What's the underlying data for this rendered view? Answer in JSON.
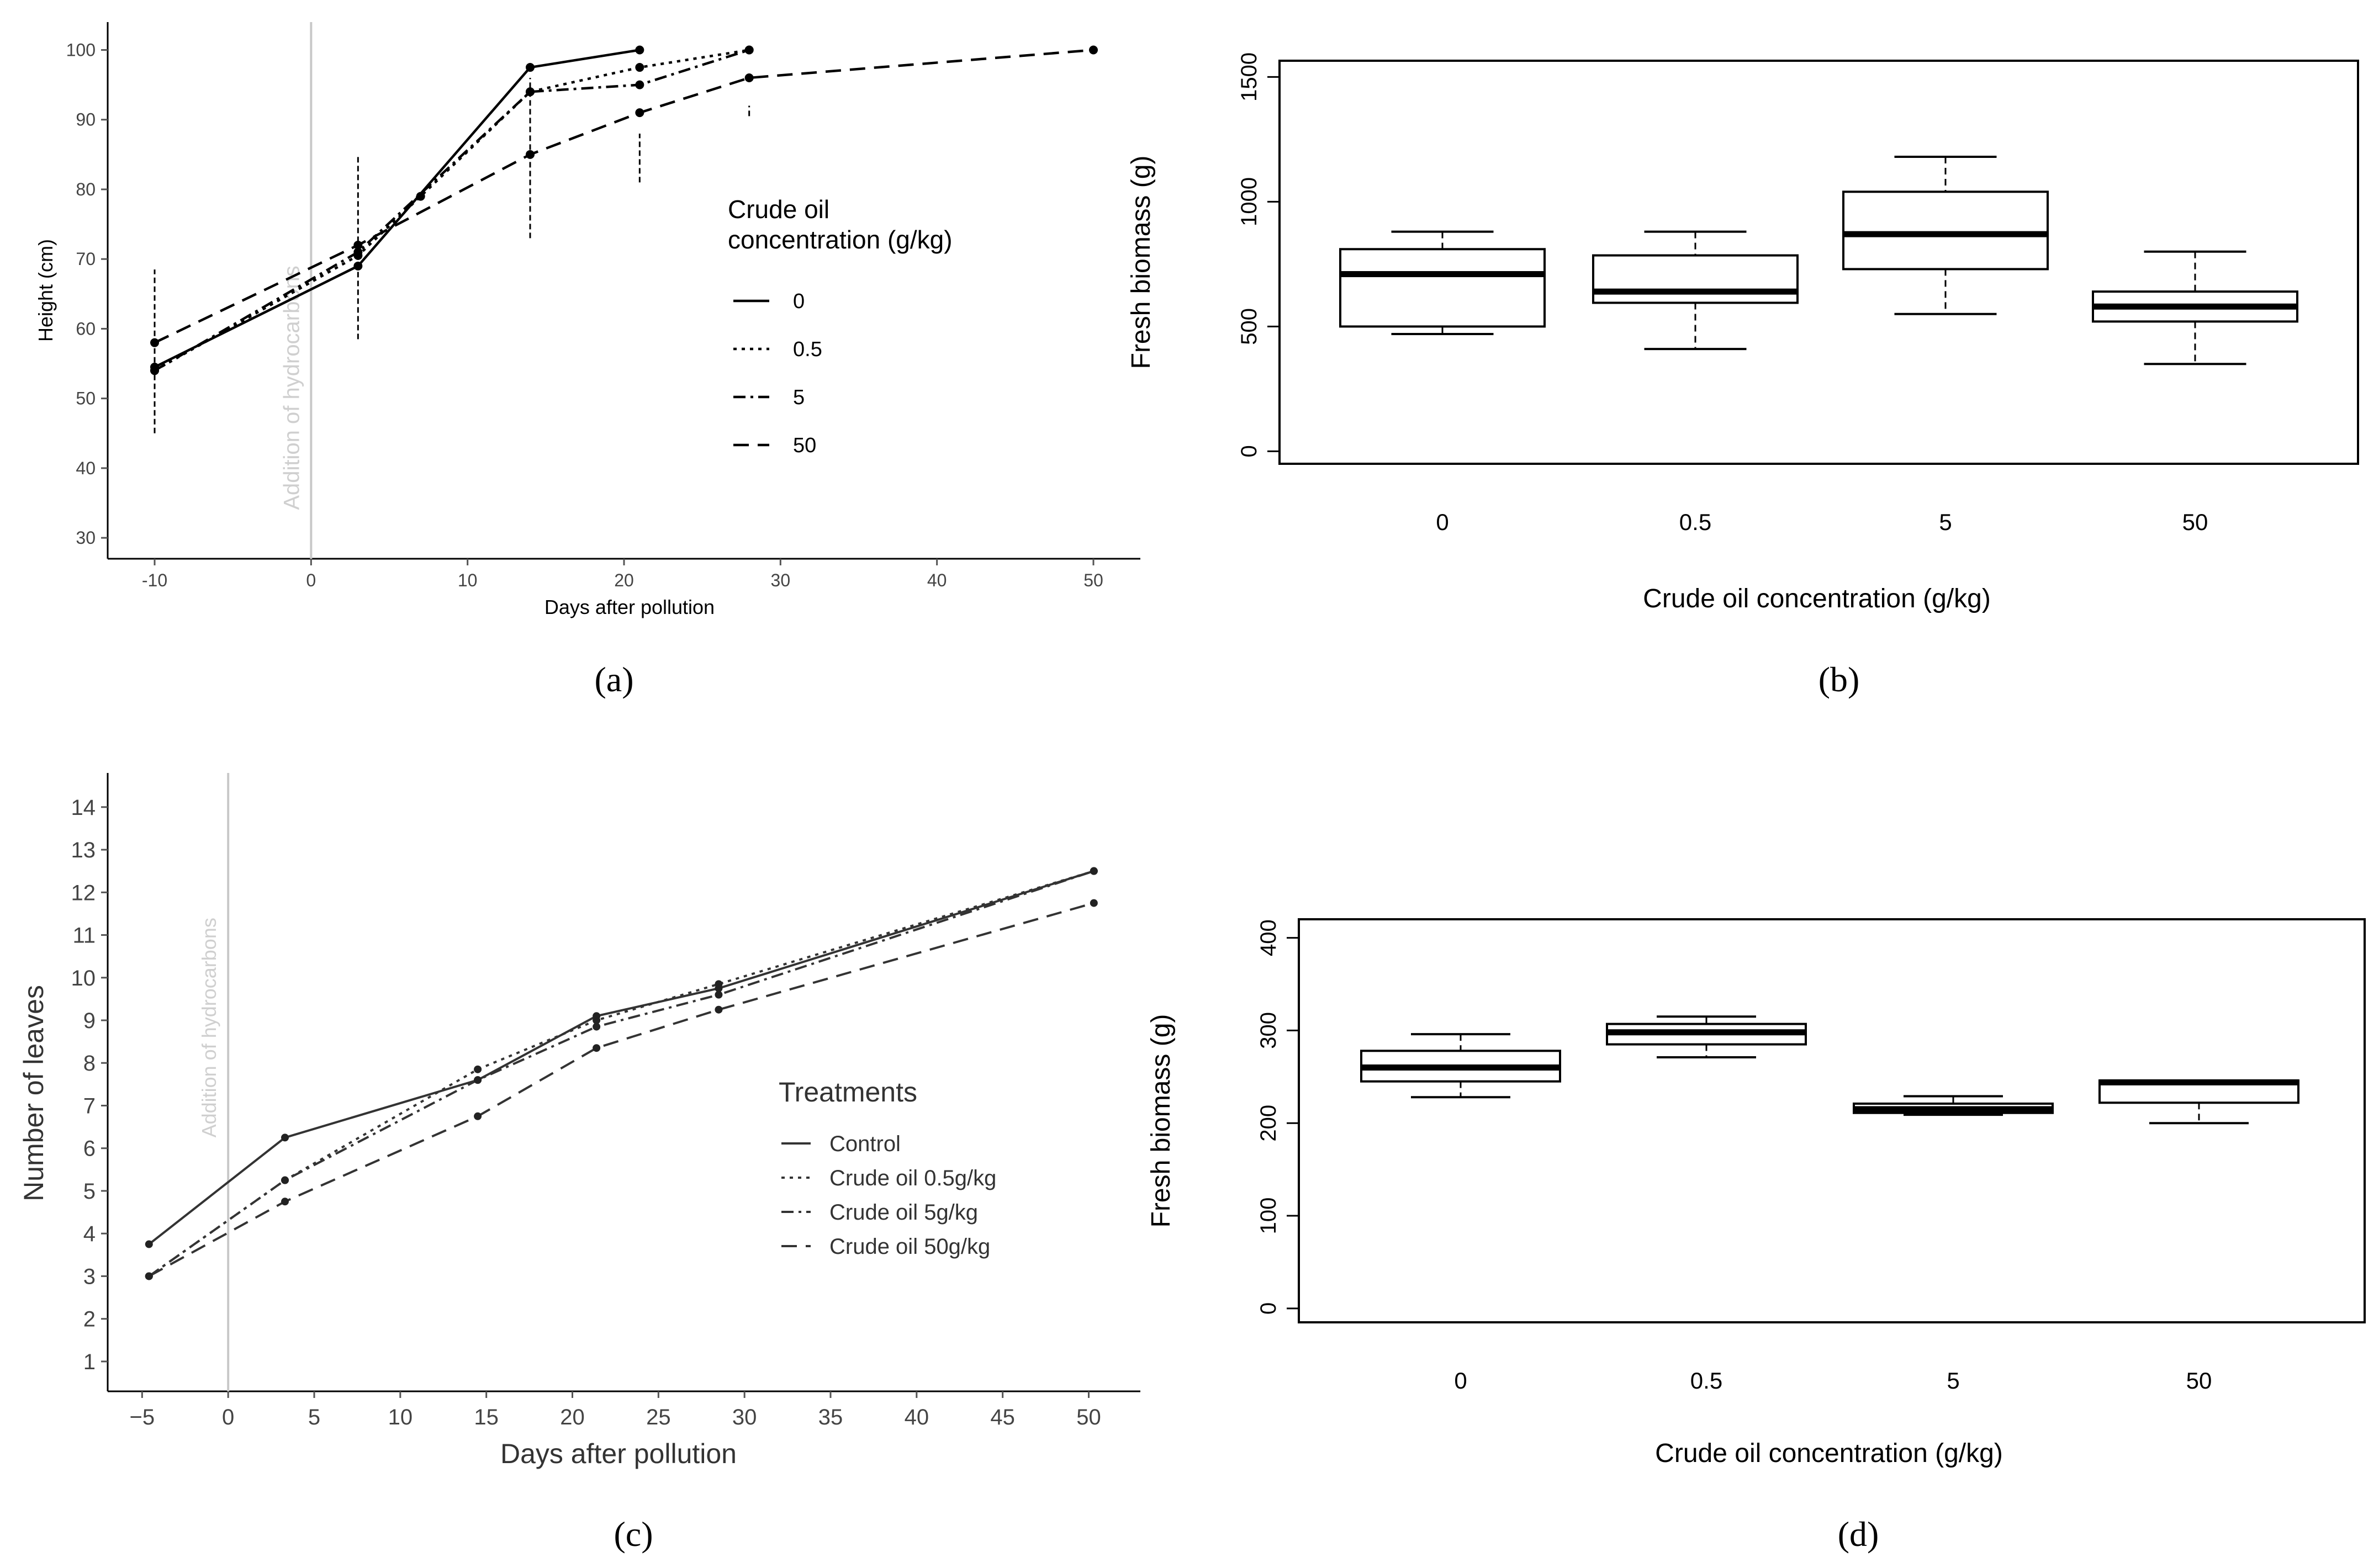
{
  "captions": {
    "a": "(a)",
    "b": "(b)",
    "c": "(c)",
    "d": "(d)"
  },
  "chart_data": [
    {
      "panel": "a",
      "type": "line",
      "xlabel": "Days after pollution",
      "ylabel": "Height (cm)",
      "xlim": [
        -13,
        53
      ],
      "ylim": [
        27,
        104
      ],
      "xticks": [
        -10,
        0,
        10,
        20,
        30,
        40,
        50
      ],
      "yticks": [
        30,
        40,
        50,
        60,
        70,
        80,
        90,
        100
      ],
      "annotation": "Addition of hydrocarbons",
      "annotation_x": 0,
      "legend_title": [
        "Crude oil",
        "concentration (g/kg)"
      ],
      "legend_position": "right",
      "series": [
        {
          "name": "0",
          "dash": "solid",
          "x": [
            -10,
            3,
            14,
            21
          ],
          "y": [
            54.5,
            69,
            97.5,
            100
          ]
        },
        {
          "name": "0.5",
          "dash": "dot",
          "x": [
            -10,
            3,
            7,
            14,
            21,
            28
          ],
          "y": [
            54,
            70.5,
            79,
            94,
            97.5,
            100
          ]
        },
        {
          "name": "5",
          "dash": "dashdot",
          "x": [
            -10,
            3,
            14,
            21,
            28
          ],
          "y": [
            54,
            71,
            94,
            95,
            100
          ]
        },
        {
          "name": "50",
          "dash": "dash",
          "x": [
            -10,
            3,
            14,
            21,
            28,
            50
          ],
          "y": [
            58,
            72,
            85,
            91,
            96,
            100
          ]
        }
      ],
      "errorbars": [
        {
          "x": -10,
          "low": 45,
          "high": 68.5
        },
        {
          "x": 3,
          "low": 58.5,
          "high": 85
        },
        {
          "x": 14,
          "low": 73,
          "high": 96
        },
        {
          "x": 21,
          "low": 81,
          "high": 88
        },
        {
          "x": 28,
          "low": 90.5,
          "high": 92
        }
      ]
    },
    {
      "panel": "b",
      "type": "box",
      "xlabel": "Crude oil concentration (g/kg)",
      "ylabel": "Fresh biomass (g)",
      "categories": [
        "0",
        "0.5",
        "5",
        "50"
      ],
      "ylim": [
        -50,
        1565
      ],
      "yticks": [
        0,
        500,
        1000,
        1500
      ],
      "boxes": [
        {
          "min": 470,
          "q1": 500,
          "median": 710,
          "q3": 810,
          "max": 880
        },
        {
          "min": 410,
          "q1": 595,
          "median": 640,
          "q3": 785,
          "max": 880
        },
        {
          "min": 550,
          "q1": 730,
          "median": 870,
          "q3": 1040,
          "max": 1180
        },
        {
          "min": 350,
          "q1": 520,
          "median": 580,
          "q3": 640,
          "max": 800
        }
      ]
    },
    {
      "panel": "c",
      "type": "line",
      "xlabel": "Days after pollution",
      "ylabel": "Number of leaves",
      "xlim": [
        -7,
        53
      ],
      "ylim": [
        0.3,
        14.8
      ],
      "xticks": [
        -5,
        0,
        5,
        10,
        15,
        20,
        25,
        30,
        35,
        40,
        45,
        50
      ],
      "yticks": [
        1,
        2,
        3,
        4,
        5,
        6,
        7,
        8,
        9,
        10,
        11,
        12,
        13,
        14
      ],
      "annotation": "Addition of hydrocarbons",
      "annotation_x": 0,
      "legend_title": "Treatments",
      "legend_position": "right",
      "series": [
        {
          "name": "Control",
          "dash": "solid",
          "x": [
            -4.6,
            3.3,
            14.5,
            21.4,
            28.5,
            50.3
          ],
          "y": [
            3.75,
            6.25,
            7.6,
            9.1,
            9.75,
            12.5
          ]
        },
        {
          "name": "Crude oil 0.5g/kg",
          "dash": "dot",
          "x": [
            -4.6,
            3.3,
            14.5,
            21.4,
            28.5,
            50.3
          ],
          "y": [
            3.0,
            5.25,
            7.85,
            9.0,
            9.85,
            12.5
          ]
        },
        {
          "name": "Crude oil 5g/kg",
          "dash": "dashdot",
          "x": [
            -4.6,
            3.3,
            14.5,
            21.4,
            28.5,
            50.3
          ],
          "y": [
            3.0,
            5.25,
            7.6,
            8.85,
            9.6,
            12.5
          ]
        },
        {
          "name": "Crude oil 50g/kg",
          "dash": "dash",
          "x": [
            -4.6,
            3.3,
            14.5,
            21.4,
            28.5,
            50.3
          ],
          "y": [
            3.0,
            4.75,
            6.75,
            8.35,
            9.25,
            11.75
          ]
        }
      ]
    },
    {
      "panel": "d",
      "type": "box",
      "xlabel": "Crude oil concentration (g/kg)",
      "ylabel": "Fresh biomass (g)",
      "categories": [
        "0",
        "0.5",
        "5",
        "50"
      ],
      "ylim": [
        -15,
        420
      ],
      "yticks": [
        0,
        100,
        200,
        300,
        400
      ],
      "boxes": [
        {
          "min": 228,
          "q1": 245,
          "median": 260,
          "q3": 278,
          "max": 296
        },
        {
          "min": 271,
          "q1": 285,
          "median": 298,
          "q3": 307,
          "max": 315
        },
        {
          "min": 209,
          "q1": 211,
          "median": 215,
          "q3": 221,
          "max": 229
        },
        {
          "min": 200,
          "q1": 222,
          "median": 244,
          "q3": 246,
          "max": 246
        }
      ]
    }
  ]
}
